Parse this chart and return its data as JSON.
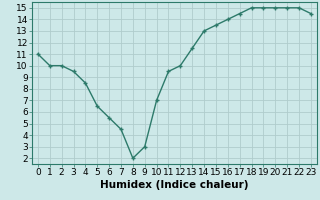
{
  "title": "",
  "xlabel": "Humidex (Indice chaleur)",
  "ylabel": "",
  "x": [
    0,
    1,
    2,
    3,
    4,
    5,
    6,
    7,
    8,
    9,
    10,
    11,
    12,
    13,
    14,
    15,
    16,
    17,
    18,
    19,
    20,
    21,
    22,
    23
  ],
  "y": [
    11,
    10,
    10,
    9.5,
    8.5,
    6.5,
    5.5,
    4.5,
    2,
    3,
    7,
    9.5,
    10,
    11.5,
    13,
    13.5,
    14,
    14.5,
    15,
    15,
    15,
    15,
    15,
    14.5
  ],
  "line_color": "#2d7a6a",
  "marker": "+",
  "marker_size": 3.5,
  "bg_color": "#cde8e8",
  "grid_color": "#b0cccc",
  "xlim": [
    -0.5,
    23.5
  ],
  "ylim": [
    1.5,
    15.5
  ],
  "yticks": [
    2,
    3,
    4,
    5,
    6,
    7,
    8,
    9,
    10,
    11,
    12,
    13,
    14,
    15
  ],
  "xticks": [
    0,
    1,
    2,
    3,
    4,
    5,
    6,
    7,
    8,
    9,
    10,
    11,
    12,
    13,
    14,
    15,
    16,
    17,
    18,
    19,
    20,
    21,
    22,
    23
  ],
  "xlabel_fontsize": 7.5,
  "tick_fontsize": 6.5,
  "line_width": 1.0,
  "marker_edge_width": 1.0
}
